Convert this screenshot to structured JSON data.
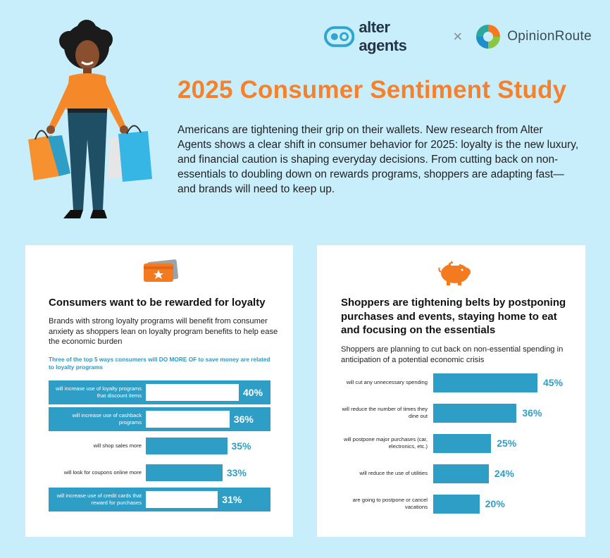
{
  "header": {
    "brand_1": "alter agents",
    "separator": "×",
    "brand_2": "OpinionRoute",
    "title": "2025 Consumer Sentiment Study",
    "intro": "Americans are tightening their grip on their wallets. New research from Alter Agents shows a clear shift in consumer behavior for 2025: loyalty is the new luxury, and financial caution is shaping everyday decisions. From cutting back on non-essentials to doubling down on rewards programs, shoppers are adapting fast—and brands will need to keep up."
  },
  "colors": {
    "background": "#c9eefb",
    "accent_orange": "#f7802b",
    "accent_blue": "#2e9ec6"
  },
  "loyalty_card": {
    "icon": "reward-card-icon",
    "title": "Consumers want to be rewarded for loyalty",
    "description": "Brands with strong loyalty programs will benefit from consumer anxiety as shoppers lean on loyalty program benefits to help ease the economic burden",
    "subhead": "Three of the top 5 ways consumers will DO MORE OF to save money are related to loyalty programs"
  },
  "belts_card": {
    "icon": "piggy-bank-icon",
    "title": "Shoppers are tightening belts by postponing purchases and events, staying home to eat and focusing on the essentials",
    "description": "Shoppers are planning to cut back on non-essential spending in anticipation of a potential economic crisis"
  },
  "chart_data": [
    {
      "type": "bar",
      "orientation": "horizontal",
      "title": "Three of the top 5 ways consumers will DO MORE OF to save money are related to loyalty programs",
      "categories": [
        "will increase use of loyalty programs that discount items",
        "will increase use of cashback programs",
        "will shop sales more",
        "will look for coupons online more",
        "will increase use of credit cards that reward for purchases"
      ],
      "values": [
        40,
        36,
        35,
        33,
        31
      ],
      "value_labels": [
        "40%",
        "36%",
        "35%",
        "33%",
        "31%"
      ],
      "highlighted": [
        true,
        true,
        false,
        false,
        true
      ],
      "xlim": [
        0,
        40
      ]
    },
    {
      "type": "bar",
      "orientation": "horizontal",
      "title": "Shoppers are planning to cut back on non-essential spending in anticipation of a potential economic crisis",
      "categories": [
        "will cut any unnecessary spending",
        "will reduce the number of times they dine out",
        "will postpone major purchases (car, electronics, etc.)",
        "will reduce the use of utilities",
        "are going to postpone or cancel vacations"
      ],
      "values": [
        45,
        36,
        25,
        24,
        20
      ],
      "value_labels": [
        "45%",
        "36%",
        "25%",
        "24%",
        "20%"
      ],
      "xlim": [
        0,
        45
      ]
    }
  ]
}
